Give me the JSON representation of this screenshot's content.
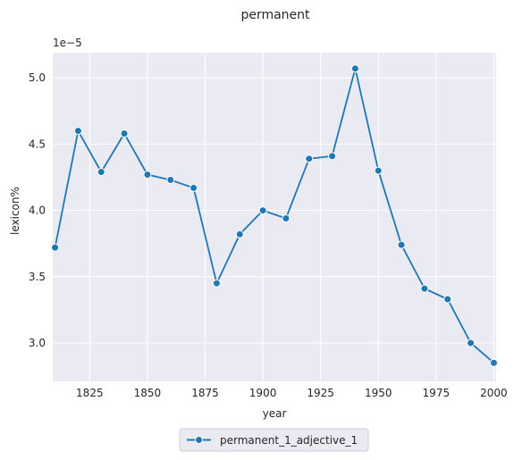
{
  "chart_data": {
    "type": "line",
    "title": "permanent",
    "xlabel": "year",
    "ylabel": "lexicon%",
    "y_offset_text": "1e−5",
    "xlim": [
      1809,
      2001
    ],
    "ylim": [
      2.71,
      5.19
    ],
    "x_ticks": [
      1825,
      1850,
      1875,
      1900,
      1925,
      1950,
      1975,
      2000
    ],
    "y_ticks": [
      3.0,
      3.5,
      4.0,
      4.5,
      5.0
    ],
    "y_tick_labels": [
      "3.0",
      "3.5",
      "4.0",
      "4.5",
      "5.0"
    ],
    "grid": true,
    "legend_placement": "bottom-center",
    "colors": {
      "series": "#1f77b4",
      "plot_bg": "#eaeaf2",
      "grid": "#ffffff"
    },
    "series": [
      {
        "name": "permanent_1_adjective_1",
        "x": [
          1810,
          1820,
          1830,
          1840,
          1850,
          1860,
          1870,
          1880,
          1890,
          1900,
          1910,
          1920,
          1930,
          1940,
          1950,
          1960,
          1970,
          1980,
          1990,
          2000
        ],
        "y": [
          3.72,
          4.6,
          4.29,
          4.58,
          4.27,
          4.23,
          4.17,
          3.45,
          3.82,
          4.0,
          3.94,
          4.39,
          4.41,
          5.07,
          4.3,
          3.74,
          3.41,
          3.33,
          3.0,
          2.85
        ]
      }
    ]
  }
}
